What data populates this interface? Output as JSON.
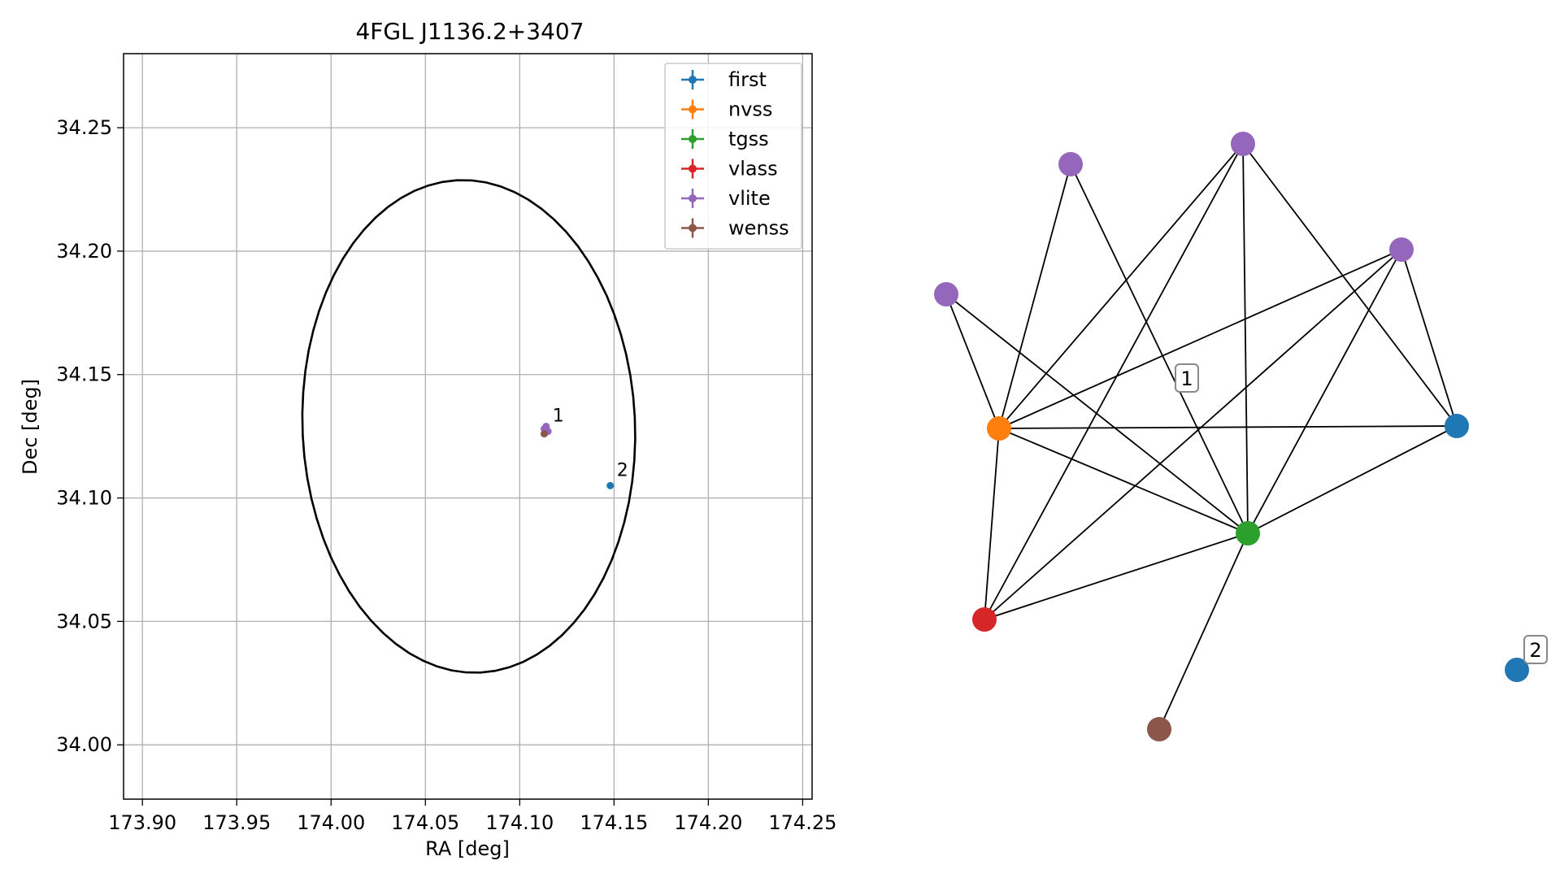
{
  "chart_data": [
    {
      "type": "scatter",
      "title": "4FGL J1136.2+3407",
      "xlabel": "RA [deg]",
      "ylabel": "Dec [deg]",
      "xlim": [
        173.89,
        174.255
      ],
      "ylim": [
        33.978,
        34.28
      ],
      "xticks": [
        "173.90",
        "173.95",
        "174.00",
        "174.05",
        "174.10",
        "174.15",
        "174.20",
        "174.25"
      ],
      "yticks": [
        "34.00",
        "34.05",
        "34.10",
        "34.15",
        "34.20",
        "34.25"
      ],
      "grid": true,
      "legend_position": "upper right",
      "ellipse": {
        "center_ra": 174.073,
        "center_dec": 34.129,
        "semi_axis_ra": 0.088,
        "semi_axis_dec": 0.1,
        "rotation_deg": 8,
        "color": "#000000"
      },
      "series": [
        {
          "name": "first",
          "color": "#1f77b4",
          "points": [
            {
              "x": 174.148,
              "y": 34.105
            }
          ]
        },
        {
          "name": "nvss",
          "color": "#ff7f0e",
          "points": [
            {
              "x": 174.114,
              "y": 34.127
            }
          ]
        },
        {
          "name": "tgss",
          "color": "#2ca02c",
          "points": [
            {
              "x": 174.114,
              "y": 34.127
            }
          ]
        },
        {
          "name": "vlass",
          "color": "#d62728",
          "points": [
            {
              "x": 174.114,
              "y": 34.127
            }
          ]
        },
        {
          "name": "vlite",
          "color": "#9467bd",
          "points": [
            {
              "x": 174.114,
              "y": 34.128
            },
            {
              "x": 174.115,
              "y": 34.127
            },
            {
              "x": 174.113,
              "y": 34.128
            },
            {
              "x": 174.114,
              "y": 34.129
            }
          ]
        },
        {
          "name": "wenss",
          "color": "#8c564b",
          "points": [
            {
              "x": 174.113,
              "y": 34.126
            }
          ]
        }
      ],
      "annotations": [
        {
          "text": "1",
          "x": 174.114,
          "y": 34.127
        },
        {
          "text": "2",
          "x": 174.148,
          "y": 34.105
        }
      ]
    },
    {
      "type": "network",
      "nodes": [
        {
          "id": "vlite_a",
          "series": "vlite",
          "color": "#9467bd"
        },
        {
          "id": "vlite_b",
          "series": "vlite",
          "color": "#9467bd"
        },
        {
          "id": "vlite_c",
          "series": "vlite",
          "color": "#9467bd"
        },
        {
          "id": "vlite_d",
          "series": "vlite",
          "color": "#9467bd"
        },
        {
          "id": "nvss",
          "series": "nvss",
          "color": "#ff7f0e"
        },
        {
          "id": "first_1",
          "series": "first",
          "color": "#1f77b4"
        },
        {
          "id": "tgss",
          "series": "tgss",
          "color": "#2ca02c"
        },
        {
          "id": "vlass",
          "series": "vlass",
          "color": "#d62728"
        },
        {
          "id": "wenss",
          "series": "wenss",
          "color": "#8c564b"
        },
        {
          "id": "first_2",
          "series": "first",
          "color": "#1f77b4"
        }
      ],
      "edges": [
        [
          "vlite_a",
          "nvss"
        ],
        [
          "vlite_a",
          "tgss"
        ],
        [
          "vlite_b",
          "nvss"
        ],
        [
          "vlite_b",
          "tgss"
        ],
        [
          "vlite_c",
          "nvss"
        ],
        [
          "vlite_c",
          "vlass"
        ],
        [
          "vlite_c",
          "tgss"
        ],
        [
          "vlite_c",
          "first_1"
        ],
        [
          "vlite_d",
          "nvss"
        ],
        [
          "vlite_d",
          "vlass"
        ],
        [
          "vlite_d",
          "tgss"
        ],
        [
          "vlite_d",
          "first_1"
        ],
        [
          "nvss",
          "first_1"
        ],
        [
          "nvss",
          "tgss"
        ],
        [
          "nvss",
          "vlass"
        ],
        [
          "first_1",
          "tgss"
        ],
        [
          "tgss",
          "vlass"
        ],
        [
          "tgss",
          "wenss"
        ]
      ],
      "labels": [
        {
          "text": "1",
          "group": "1"
        },
        {
          "text": "2",
          "group": "2"
        }
      ]
    }
  ]
}
